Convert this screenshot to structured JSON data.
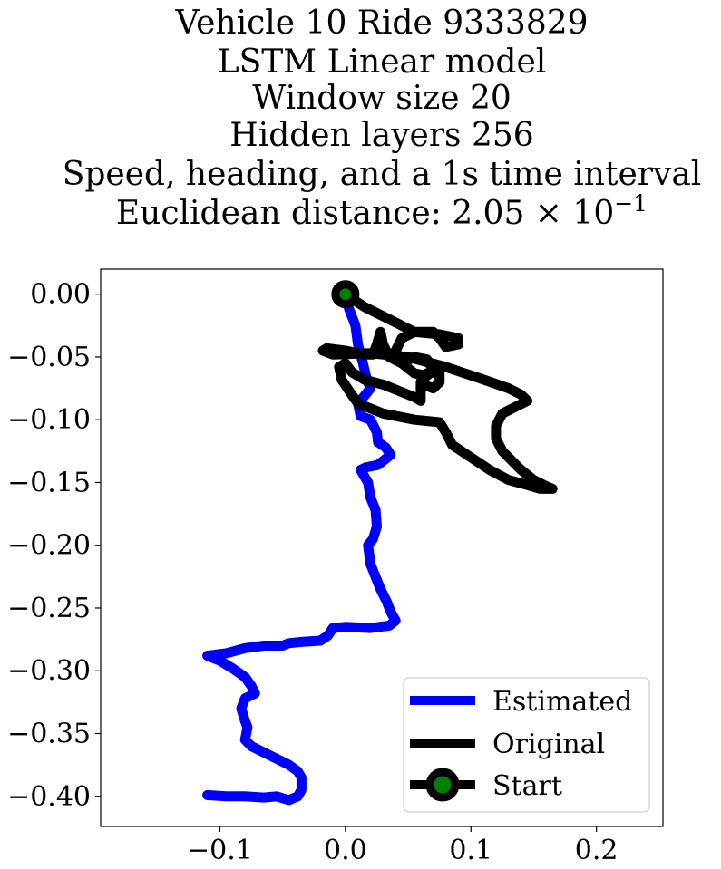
{
  "chart_data": {
    "type": "line",
    "title_lines": [
      "Vehicle 10 Ride 9333829",
      "LSTM Linear model",
      "Window size 20",
      "Hidden layers 256",
      "Speed, heading, and a 1s time interval"
    ],
    "title_distance_prefix": "Euclidean distance: ",
    "title_distance_value": "2.05 × 10",
    "title_distance_exponent": "−1",
    "xlim": [
      -0.195,
      0.253
    ],
    "ylim": [
      -0.424,
      0.02
    ],
    "xticks": [
      -0.1,
      0.0,
      0.1,
      0.2
    ],
    "xtick_labels": [
      "−0.1",
      "0.0",
      "0.1",
      "0.2"
    ],
    "yticks": [
      0.0,
      -0.05,
      -0.1,
      -0.15,
      -0.2,
      -0.25,
      -0.3,
      -0.35,
      -0.4
    ],
    "ytick_labels": [
      "0.00",
      "−0.05",
      "−0.10",
      "−0.15",
      "−0.20",
      "−0.25",
      "−0.30",
      "−0.35",
      "−0.40"
    ],
    "grid": false,
    "legend_position": "lower-right",
    "series": [
      {
        "name": "Estimated",
        "color": "#0000ff",
        "points": [
          [
            0.0,
            0.0
          ],
          [
            0.003,
            -0.012
          ],
          [
            0.008,
            -0.025
          ],
          [
            0.01,
            -0.04
          ],
          [
            0.014,
            -0.055
          ],
          [
            0.017,
            -0.068
          ],
          [
            0.02,
            -0.075
          ],
          [
            0.016,
            -0.08
          ],
          [
            0.01,
            -0.087
          ],
          [
            0.012,
            -0.097
          ],
          [
            0.02,
            -0.1
          ],
          [
            0.025,
            -0.11
          ],
          [
            0.026,
            -0.118
          ],
          [
            0.032,
            -0.122
          ],
          [
            0.036,
            -0.128
          ],
          [
            0.026,
            -0.136
          ],
          [
            0.016,
            -0.138
          ],
          [
            0.012,
            -0.14
          ],
          [
            0.018,
            -0.15
          ],
          [
            0.02,
            -0.162
          ],
          [
            0.024,
            -0.172
          ],
          [
            0.025,
            -0.185
          ],
          [
            0.022,
            -0.195
          ],
          [
            0.018,
            -0.2
          ],
          [
            0.02,
            -0.215
          ],
          [
            0.024,
            -0.225
          ],
          [
            0.028,
            -0.235
          ],
          [
            0.033,
            -0.245
          ],
          [
            0.036,
            -0.253
          ],
          [
            0.04,
            -0.26
          ],
          [
            0.035,
            -0.264
          ],
          [
            0.02,
            -0.266
          ],
          [
            0.0,
            -0.265
          ],
          [
            -0.01,
            -0.266
          ],
          [
            -0.014,
            -0.272
          ],
          [
            -0.02,
            -0.276
          ],
          [
            -0.035,
            -0.277
          ],
          [
            -0.045,
            -0.278
          ],
          [
            -0.05,
            -0.28
          ],
          [
            -0.065,
            -0.28
          ],
          [
            -0.08,
            -0.282
          ],
          [
            -0.095,
            -0.286
          ],
          [
            -0.11,
            -0.288
          ],
          [
            -0.1,
            -0.292
          ],
          [
            -0.09,
            -0.298
          ],
          [
            -0.08,
            -0.305
          ],
          [
            -0.075,
            -0.312
          ],
          [
            -0.072,
            -0.318
          ],
          [
            -0.08,
            -0.322
          ],
          [
            -0.083,
            -0.33
          ],
          [
            -0.08,
            -0.34
          ],
          [
            -0.078,
            -0.345
          ],
          [
            -0.08,
            -0.355
          ],
          [
            -0.075,
            -0.36
          ],
          [
            -0.065,
            -0.365
          ],
          [
            -0.055,
            -0.37
          ],
          [
            -0.045,
            -0.375
          ],
          [
            -0.038,
            -0.38
          ],
          [
            -0.035,
            -0.385
          ],
          [
            -0.035,
            -0.395
          ],
          [
            -0.038,
            -0.4
          ],
          [
            -0.045,
            -0.403
          ],
          [
            -0.055,
            -0.4
          ],
          [
            -0.065,
            -0.401
          ],
          [
            -0.08,
            -0.4
          ],
          [
            -0.095,
            -0.4
          ],
          [
            -0.11,
            -0.399
          ]
        ]
      },
      {
        "name": "Original",
        "color": "#000000",
        "points": [
          [
            0.0,
            0.0
          ],
          [
            0.015,
            -0.01
          ],
          [
            0.035,
            -0.02
          ],
          [
            0.055,
            -0.03
          ],
          [
            0.075,
            -0.032
          ],
          [
            0.09,
            -0.035
          ],
          [
            0.09,
            -0.04
          ],
          [
            0.08,
            -0.042
          ],
          [
            0.075,
            -0.035
          ],
          [
            0.07,
            -0.03
          ],
          [
            0.055,
            -0.03
          ],
          [
            0.045,
            -0.035
          ],
          [
            0.04,
            -0.045
          ],
          [
            0.045,
            -0.055
          ],
          [
            0.055,
            -0.063
          ],
          [
            0.065,
            -0.065
          ],
          [
            0.07,
            -0.06
          ],
          [
            0.065,
            -0.052
          ],
          [
            0.055,
            -0.05
          ],
          [
            0.045,
            -0.055
          ],
          [
            0.035,
            -0.05
          ],
          [
            0.03,
            -0.04
          ],
          [
            0.028,
            -0.03
          ],
          [
            0.025,
            -0.04
          ],
          [
            0.022,
            -0.048
          ],
          [
            0.015,
            -0.048
          ],
          [
            0.0,
            -0.045
          ],
          [
            -0.015,
            -0.043
          ],
          [
            -0.018,
            -0.045
          ],
          [
            -0.01,
            -0.048
          ],
          [
            0.02,
            -0.047
          ],
          [
            0.05,
            -0.05
          ],
          [
            0.08,
            -0.058
          ],
          [
            0.11,
            -0.068
          ],
          [
            0.13,
            -0.075
          ],
          [
            0.14,
            -0.08
          ],
          [
            0.145,
            -0.085
          ],
          [
            0.135,
            -0.09
          ],
          [
            0.125,
            -0.095
          ],
          [
            0.12,
            -0.105
          ],
          [
            0.12,
            -0.115
          ],
          [
            0.125,
            -0.125
          ],
          [
            0.13,
            -0.13
          ],
          [
            0.14,
            -0.14
          ],
          [
            0.15,
            -0.148
          ],
          [
            0.16,
            -0.153
          ],
          [
            0.165,
            -0.155
          ],
          [
            0.155,
            -0.155
          ],
          [
            0.145,
            -0.152
          ],
          [
            0.13,
            -0.148
          ],
          [
            0.115,
            -0.14
          ],
          [
            0.1,
            -0.13
          ],
          [
            0.085,
            -0.12
          ],
          [
            0.08,
            -0.11
          ],
          [
            0.075,
            -0.102
          ],
          [
            0.055,
            -0.1
          ],
          [
            0.03,
            -0.095
          ],
          [
            0.01,
            -0.087
          ],
          [
            0.005,
            -0.08
          ],
          [
            -0.003,
            -0.068
          ],
          [
            -0.005,
            -0.058
          ],
          [
            0.0,
            -0.055
          ],
          [
            0.005,
            -0.062
          ],
          [
            0.015,
            -0.068
          ],
          [
            0.03,
            -0.072
          ],
          [
            0.045,
            -0.078
          ],
          [
            0.055,
            -0.082
          ],
          [
            0.06,
            -0.085
          ],
          [
            0.06,
            -0.078
          ],
          [
            0.06,
            -0.07
          ],
          [
            0.065,
            -0.063
          ],
          [
            0.075,
            -0.062
          ],
          [
            0.075,
            -0.07
          ],
          [
            0.07,
            -0.075
          ],
          [
            0.062,
            -0.072
          ]
        ]
      }
    ],
    "start_marker": {
      "name": "Start",
      "x": 0.0,
      "y": 0.0,
      "edge_color": "#000000",
      "face_color": "#008000"
    }
  }
}
